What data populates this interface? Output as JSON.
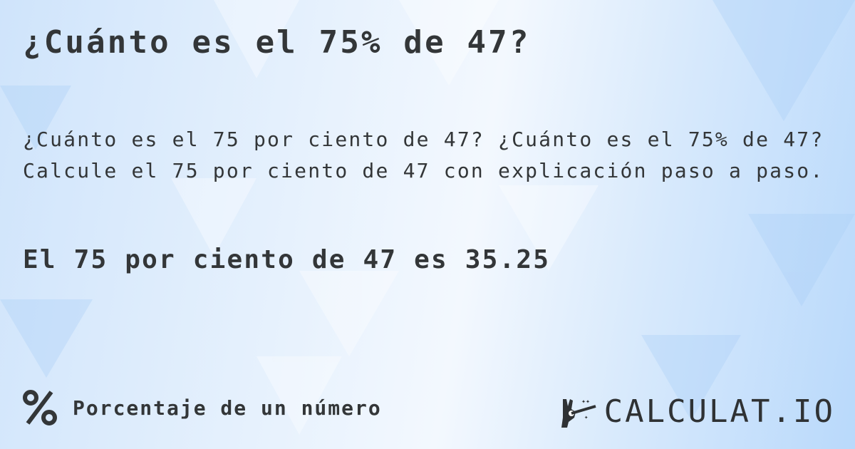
{
  "title": "¿Cuánto es el 75% de 47?",
  "description": [
    "¿Cuánto es el 75 por ciento de 47? ¿Cuánto es el 75% de 47?",
    "Calcule el 75 por ciento de 47 con explicación paso a paso."
  ],
  "result": "El 75 por ciento de 47 es 35.25",
  "footer": {
    "icon": "percent-icon",
    "label": "Porcentaje de un número"
  },
  "logo": {
    "text": "CALCULAT.IO",
    "icon": "magic-wand-hand-icon"
  },
  "colors": {
    "text": "#333638",
    "background": "#d7e9fc"
  }
}
